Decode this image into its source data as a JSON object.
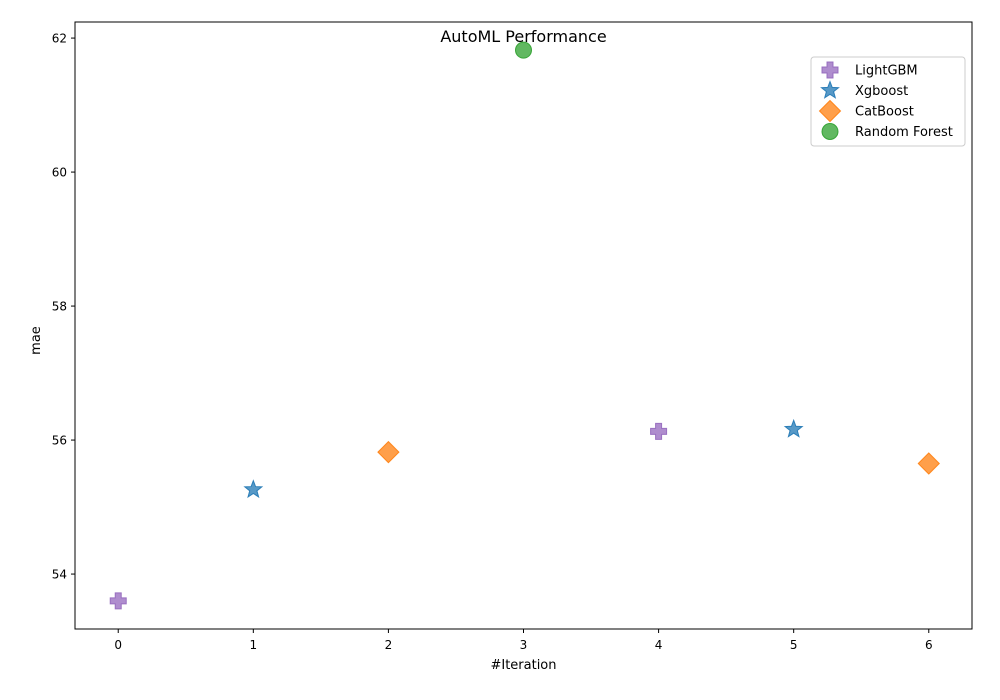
{
  "chart_data": {
    "type": "scatter",
    "title": "AutoML Performance",
    "xlabel": "#Iteration",
    "ylabel": "mae",
    "xlim": [
      -0.32,
      6.32
    ],
    "ylim": [
      53.18,
      62.24
    ],
    "xticks": [
      "0",
      "1",
      "2",
      "3",
      "4",
      "5",
      "6"
    ],
    "yticks": [
      "54",
      "56",
      "58",
      "60",
      "62"
    ],
    "grid": false,
    "legend_position": "upper right",
    "series": [
      {
        "name": "LightGBM",
        "marker": "plus",
        "color": "#9467bd",
        "x": [
          0,
          4
        ],
        "y": [
          53.6,
          56.13
        ]
      },
      {
        "name": "Xgboost",
        "marker": "star",
        "color": "#1f77b4",
        "x": [
          1,
          5
        ],
        "y": [
          55.26,
          56.16
        ]
      },
      {
        "name": "CatBoost",
        "marker": "diamond",
        "color": "#ff7f0e",
        "x": [
          2,
          6
        ],
        "y": [
          55.82,
          55.65
        ]
      },
      {
        "name": "Random Forest",
        "marker": "circle",
        "color": "#2ca02c",
        "x": [
          3
        ],
        "y": [
          61.82
        ]
      }
    ]
  }
}
